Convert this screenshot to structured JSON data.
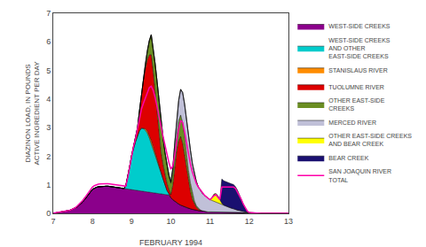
{
  "chart_data": {
    "type": "area",
    "stacked": true,
    "xlabel": "FEBRUARY 1994",
    "ylabel": "DIAZINON LOAD, IN POUNDS\nACTIVE INGREDIENT PER DAY",
    "xlim": [
      7,
      13
    ],
    "ylim": [
      0,
      7
    ],
    "xticks": [
      7,
      8,
      9,
      10,
      11,
      12,
      13
    ],
    "yticks": [
      0,
      1,
      2,
      3,
      4,
      5,
      6,
      7
    ],
    "grid": false,
    "legend": "right",
    "x": [
      7.0,
      7.05,
      7.1,
      7.15,
      7.2,
      7.25,
      7.3,
      7.35,
      7.4,
      7.45,
      7.5,
      7.55,
      7.6,
      7.65,
      7.7,
      7.75,
      7.8,
      7.85,
      7.9,
      7.95,
      8.0,
      8.05,
      8.1,
      8.15,
      8.2,
      8.25,
      8.3,
      8.35,
      8.4,
      8.45,
      8.5,
      8.55,
      8.6,
      8.65,
      8.7,
      8.75,
      8.8,
      8.85,
      8.9,
      8.95,
      9.0,
      9.05,
      9.1,
      9.15,
      9.2,
      9.25,
      9.3,
      9.35,
      9.4,
      9.45,
      9.5,
      9.55,
      9.6,
      9.65,
      9.7,
      9.75,
      9.8,
      9.85,
      9.9,
      9.95,
      10.0,
      10.05,
      10.1,
      10.15,
      10.2,
      10.25,
      10.3,
      10.35,
      10.4,
      10.45,
      10.5,
      10.55,
      10.6,
      10.65,
      10.7,
      10.75,
      10.8,
      10.85,
      10.9,
      10.95,
      11.0,
      11.05,
      11.1,
      11.15,
      11.2,
      11.25,
      11.3,
      11.35,
      11.4,
      11.45,
      11.5,
      11.55,
      11.6,
      11.65,
      11.7,
      11.75,
      11.8,
      11.85,
      11.9,
      11.95,
      12.0,
      12.1,
      12.2,
      12.3,
      12.4,
      12.5,
      12.6,
      12.7,
      12.8,
      12.9,
      13.0
    ],
    "series": [
      {
        "name": "WEST-SIDE CREEKS",
        "type": "area",
        "color": "#8b008b",
        "values": [
          0.0,
          0.01,
          0.02,
          0.03,
          0.04,
          0.05,
          0.06,
          0.08,
          0.1,
          0.12,
          0.15,
          0.18,
          0.22,
          0.27,
          0.33,
          0.4,
          0.48,
          0.56,
          0.65,
          0.75,
          0.84,
          0.88,
          0.91,
          0.93,
          0.94,
          0.95,
          0.95,
          0.95,
          0.95,
          0.94,
          0.93,
          0.92,
          0.91,
          0.9,
          0.89,
          0.88,
          0.87,
          0.86,
          0.85,
          0.84,
          0.83,
          0.82,
          0.81,
          0.8,
          0.79,
          0.78,
          0.77,
          0.76,
          0.75,
          0.74,
          0.73,
          0.72,
          0.71,
          0.7,
          0.69,
          0.68,
          0.67,
          0.66,
          0.65,
          0.64,
          0.55,
          0.48,
          0.42,
          0.37,
          0.33,
          0.29,
          0.26,
          0.23,
          0.2,
          0.18,
          0.16,
          0.14,
          0.12,
          0.11,
          0.1,
          0.09,
          0.08,
          0.07,
          0.06,
          0.05,
          0.05,
          0.05,
          0.05,
          0.05,
          0.05,
          0.05,
          0.05,
          0.05,
          0.05,
          0.05,
          0.05,
          0.05,
          0.05,
          0.04,
          0.04,
          0.04,
          0.03,
          0.03,
          0.02,
          0.02,
          0.02,
          0.01,
          0.01,
          0.01,
          0.01,
          0.0,
          0.0,
          0.0,
          0.0,
          0.0,
          0.0
        ]
      },
      {
        "name": "WEST-SIDE CREEKS\nAND OTHER\nEAST-SIDE CREEKS",
        "type": "area",
        "color": "#00cccc",
        "values": [
          0.0,
          0.0,
          0.0,
          0.0,
          0.0,
          0.0,
          0.0,
          0.0,
          0.0,
          0.0,
          0.0,
          0.0,
          0.0,
          0.0,
          0.0,
          0.0,
          0.0,
          0.0,
          0.0,
          0.0,
          0.0,
          0.0,
          0.0,
          0.0,
          0.0,
          0.0,
          0.0,
          0.0,
          0.0,
          0.0,
          0.0,
          0.0,
          0.0,
          0.0,
          0.0,
          0.0,
          0.0,
          0.1,
          0.4,
          0.8,
          1.2,
          1.5,
          1.7,
          1.9,
          2.1,
          2.2,
          2.2,
          2.15,
          2.05,
          1.9,
          1.7,
          1.5,
          1.3,
          1.1,
          0.9,
          0.7,
          0.5,
          0.3,
          0.15,
          0.05,
          0.0,
          0.0,
          0.0,
          0.0,
          0.0,
          0.0,
          0.0,
          0.0,
          0.0,
          0.0,
          0.0,
          0.0,
          0.0,
          0.0,
          0.0,
          0.0,
          0.0,
          0.0,
          0.0,
          0.0,
          0.0,
          0.0,
          0.0,
          0.0,
          0.0,
          0.0,
          0.0,
          0.0,
          0.0,
          0.0,
          0.0,
          0.0,
          0.0,
          0.0,
          0.0,
          0.0,
          0.0,
          0.0,
          0.0,
          0.0,
          0.0,
          0.0,
          0.0,
          0.0,
          0.0,
          0.0,
          0.0,
          0.0,
          0.0,
          0.0,
          0.0
        ]
      },
      {
        "name": "STANISLAUS RIVER",
        "type": "area",
        "color": "#ff8c00",
        "values": [
          0.0,
          0.0,
          0.0,
          0.0,
          0.0,
          0.0,
          0.0,
          0.0,
          0.0,
          0.0,
          0.0,
          0.0,
          0.0,
          0.0,
          0.0,
          0.0,
          0.0,
          0.0,
          0.0,
          0.0,
          0.0,
          0.0,
          0.0,
          0.0,
          0.0,
          0.0,
          0.0,
          0.0,
          0.0,
          0.0,
          0.0,
          0.0,
          0.0,
          0.0,
          0.0,
          0.0,
          0.0,
          0.0,
          0.0,
          0.0,
          0.0,
          0.0,
          0.0,
          0.0,
          0.0,
          0.0,
          0.0,
          0.05,
          0.08,
          0.1,
          0.12,
          0.12,
          0.12,
          0.1,
          0.08,
          0.06,
          0.04,
          0.02,
          0.01,
          0.0,
          0.0,
          0.0,
          0.0,
          0.0,
          0.0,
          0.0,
          0.0,
          0.0,
          0.0,
          0.0,
          0.0,
          0.0,
          0.0,
          0.0,
          0.0,
          0.0,
          0.0,
          0.0,
          0.0,
          0.0,
          0.0,
          0.0,
          0.0,
          0.0,
          0.0,
          0.0,
          0.0,
          0.0,
          0.0,
          0.0,
          0.0,
          0.0,
          0.0,
          0.0,
          0.0,
          0.0,
          0.0,
          0.0,
          0.0,
          0.0,
          0.0,
          0.0,
          0.0,
          0.0,
          0.0,
          0.0,
          0.0,
          0.0,
          0.0,
          0.0,
          0.0
        ]
      },
      {
        "name": "TUOLUMNE RIVER",
        "type": "area",
        "color": "#dd0000",
        "values": [
          0.0,
          0.0,
          0.0,
          0.0,
          0.0,
          0.0,
          0.0,
          0.0,
          0.0,
          0.0,
          0.0,
          0.0,
          0.0,
          0.0,
          0.0,
          0.0,
          0.0,
          0.0,
          0.0,
          0.0,
          0.0,
          0.0,
          0.0,
          0.0,
          0.0,
          0.0,
          0.0,
          0.0,
          0.0,
          0.0,
          0.0,
          0.0,
          0.0,
          0.0,
          0.0,
          0.0,
          0.0,
          0.0,
          0.0,
          0.0,
          0.0,
          0.0,
          0.1,
          0.3,
          0.7,
          1.2,
          1.7,
          2.1,
          2.5,
          2.8,
          3.0,
          2.6,
          2.1,
          1.6,
          1.1,
          0.7,
          0.5,
          0.35,
          0.25,
          0.15,
          0.1,
          0.5,
          1.2,
          1.8,
          2.2,
          2.4,
          2.2,
          1.8,
          1.3,
          0.9,
          0.6,
          0.35,
          0.2,
          0.1,
          0.05,
          0.02,
          0.01,
          0.0,
          0.0,
          0.0,
          0.0,
          0.0,
          0.0,
          0.0,
          0.0,
          0.0,
          0.0,
          0.0,
          0.0,
          0.0,
          0.0,
          0.0,
          0.0,
          0.0,
          0.0,
          0.0,
          0.0,
          0.0,
          0.0,
          0.0,
          0.0,
          0.0,
          0.0,
          0.0,
          0.0,
          0.0,
          0.0,
          0.0,
          0.0,
          0.0,
          0.0
        ]
      },
      {
        "name": "OTHER EAST-SIDE\nCREEKS",
        "type": "area",
        "color": "#6b8e23",
        "values": [
          0.0,
          0.0,
          0.0,
          0.0,
          0.0,
          0.0,
          0.0,
          0.0,
          0.0,
          0.0,
          0.0,
          0.0,
          0.0,
          0.0,
          0.0,
          0.0,
          0.0,
          0.0,
          0.0,
          0.0,
          0.0,
          0.0,
          0.0,
          0.0,
          0.0,
          0.0,
          0.0,
          0.0,
          0.0,
          0.0,
          0.0,
          0.0,
          0.0,
          0.0,
          0.0,
          0.0,
          0.0,
          0.0,
          0.0,
          0.0,
          0.0,
          0.0,
          0.0,
          0.0,
          0.0,
          0.0,
          0.05,
          0.15,
          0.3,
          0.5,
          0.7,
          0.85,
          1.0,
          1.1,
          1.15,
          1.1,
          0.95,
          0.8,
          0.65,
          0.5,
          0.4,
          0.45,
          0.55,
          0.65,
          0.72,
          0.75,
          0.72,
          0.65,
          0.55,
          0.42,
          0.3,
          0.2,
          0.12,
          0.06,
          0.03,
          0.01,
          0.0,
          0.0,
          0.0,
          0.0,
          0.0,
          0.0,
          0.0,
          0.0,
          0.0,
          0.0,
          0.0,
          0.0,
          0.0,
          0.0,
          0.0,
          0.0,
          0.0,
          0.0,
          0.0,
          0.0,
          0.0,
          0.0,
          0.0,
          0.0,
          0.0,
          0.0,
          0.0,
          0.0,
          0.0,
          0.0,
          0.0,
          0.0,
          0.0,
          0.0,
          0.0
        ]
      },
      {
        "name": "MERCED RIVER",
        "type": "area",
        "color": "#c0c0d8",
        "values": [
          0.0,
          0.0,
          0.0,
          0.0,
          0.0,
          0.0,
          0.0,
          0.0,
          0.0,
          0.0,
          0.0,
          0.0,
          0.0,
          0.0,
          0.0,
          0.0,
          0.0,
          0.0,
          0.0,
          0.0,
          0.0,
          0.0,
          0.0,
          0.0,
          0.0,
          0.0,
          0.0,
          0.0,
          0.0,
          0.0,
          0.0,
          0.0,
          0.0,
          0.0,
          0.0,
          0.0,
          0.0,
          0.0,
          0.0,
          0.0,
          0.0,
          0.0,
          0.0,
          0.0,
          0.0,
          0.0,
          0.0,
          0.0,
          0.0,
          0.0,
          0.0,
          0.0,
          0.0,
          0.0,
          0.0,
          0.0,
          0.0,
          0.0,
          0.0,
          0.0,
          0.05,
          0.15,
          0.3,
          0.5,
          0.7,
          0.9,
          1.05,
          1.15,
          1.2,
          1.2,
          1.15,
          1.05,
          0.95,
          0.85,
          0.75,
          0.68,
          0.62,
          0.57,
          0.52,
          0.47,
          0.43,
          0.4,
          0.37,
          0.34,
          0.31,
          0.28,
          0.25,
          0.22,
          0.2,
          0.17,
          0.15,
          0.13,
          0.11,
          0.09,
          0.07,
          0.06,
          0.05,
          0.03,
          0.02,
          0.01,
          0.0,
          0.0,
          0.0,
          0.0,
          0.0,
          0.0,
          0.0,
          0.0,
          0.0,
          0.0,
          0.0
        ]
      },
      {
        "name": "OTHER EAST-SIDE CREEKS\nAND BEAR CREEK",
        "type": "area",
        "color": "#ffff00",
        "values": [
          0.0,
          0.0,
          0.0,
          0.0,
          0.0,
          0.0,
          0.0,
          0.0,
          0.0,
          0.0,
          0.0,
          0.0,
          0.0,
          0.0,
          0.0,
          0.0,
          0.0,
          0.0,
          0.0,
          0.0,
          0.0,
          0.0,
          0.0,
          0.0,
          0.0,
          0.0,
          0.0,
          0.0,
          0.0,
          0.0,
          0.0,
          0.0,
          0.0,
          0.0,
          0.0,
          0.0,
          0.0,
          0.0,
          0.0,
          0.0,
          0.0,
          0.0,
          0.0,
          0.0,
          0.0,
          0.0,
          0.0,
          0.0,
          0.0,
          0.0,
          0.0,
          0.0,
          0.0,
          0.0,
          0.0,
          0.0,
          0.0,
          0.0,
          0.0,
          0.0,
          0.0,
          0.0,
          0.0,
          0.0,
          0.0,
          0.0,
          0.0,
          0.0,
          0.0,
          0.0,
          0.0,
          0.0,
          0.0,
          0.0,
          0.0,
          0.0,
          0.0,
          0.0,
          0.0,
          0.0,
          0.0,
          0.1,
          0.25,
          0.3,
          0.25,
          0.15,
          0.05,
          0.02,
          0.01,
          0.0,
          0.0,
          0.0,
          0.0,
          0.0,
          0.0,
          0.0,
          0.0,
          0.0,
          0.0,
          0.0,
          0.0,
          0.0,
          0.0,
          0.0,
          0.0,
          0.0,
          0.0,
          0.0,
          0.0,
          0.0,
          0.0
        ]
      },
      {
        "name": "BEAR CREEK",
        "type": "area",
        "color": "#1a1070",
        "values": [
          0.0,
          0.0,
          0.0,
          0.0,
          0.0,
          0.0,
          0.0,
          0.0,
          0.0,
          0.0,
          0.0,
          0.0,
          0.0,
          0.0,
          0.0,
          0.0,
          0.0,
          0.0,
          0.0,
          0.0,
          0.0,
          0.0,
          0.0,
          0.0,
          0.0,
          0.0,
          0.0,
          0.0,
          0.0,
          0.0,
          0.0,
          0.0,
          0.0,
          0.0,
          0.0,
          0.0,
          0.0,
          0.0,
          0.0,
          0.0,
          0.0,
          0.0,
          0.0,
          0.0,
          0.0,
          0.0,
          0.0,
          0.0,
          0.0,
          0.0,
          0.0,
          0.0,
          0.0,
          0.0,
          0.0,
          0.0,
          0.0,
          0.0,
          0.0,
          0.0,
          0.0,
          0.0,
          0.0,
          0.0,
          0.0,
          0.0,
          0.0,
          0.0,
          0.0,
          0.0,
          0.0,
          0.0,
          0.0,
          0.0,
          0.0,
          0.0,
          0.0,
          0.0,
          0.0,
          0.0,
          0.0,
          0.0,
          0.0,
          0.0,
          0.0,
          0.0,
          0.85,
          0.85,
          0.85,
          0.85,
          0.85,
          0.85,
          0.85,
          0.8,
          0.7,
          0.55,
          0.4,
          0.25,
          0.12,
          0.04,
          0.01,
          0.0,
          0.0,
          0.0,
          0.0,
          0.0,
          0.0,
          0.0,
          0.0,
          0.0,
          0.0
        ]
      },
      {
        "name": "SAN JOAQUIN RIVER\nTOTAL",
        "type": "line",
        "color": "#ff00aa",
        "values": [
          0.01,
          0.02,
          0.02,
          0.03,
          0.04,
          0.05,
          0.06,
          0.08,
          0.1,
          0.12,
          0.15,
          0.19,
          0.24,
          0.3,
          0.37,
          0.45,
          0.54,
          0.63,
          0.73,
          0.83,
          0.92,
          0.97,
          1.0,
          1.02,
          1.03,
          1.04,
          1.04,
          1.04,
          1.04,
          1.03,
          1.02,
          1.01,
          1.0,
          0.99,
          0.98,
          0.97,
          0.96,
          0.95,
          1.25,
          1.65,
          2.05,
          2.35,
          2.62,
          2.95,
          3.3,
          3.65,
          3.85,
          4.05,
          4.25,
          4.4,
          4.45,
          4.3,
          4.05,
          3.75,
          3.4,
          3.05,
          2.7,
          2.38,
          2.08,
          1.78,
          1.55,
          1.65,
          2.05,
          2.55,
          2.95,
          3.25,
          3.18,
          2.85,
          2.45,
          2.05,
          1.72,
          1.45,
          1.22,
          1.05,
          0.92,
          0.82,
          0.73,
          0.65,
          0.58,
          0.52,
          0.48,
          0.55,
          0.62,
          0.65,
          0.58,
          0.48,
          0.92,
          0.92,
          0.92,
          0.92,
          0.92,
          0.92,
          0.92,
          0.87,
          0.75,
          0.62,
          0.48,
          0.32,
          0.18,
          0.08,
          0.03,
          0.01,
          0.01,
          0.0,
          0.0,
          0.0,
          0.0,
          0.0,
          0.0,
          0.0,
          0.0
        ]
      }
    ]
  }
}
